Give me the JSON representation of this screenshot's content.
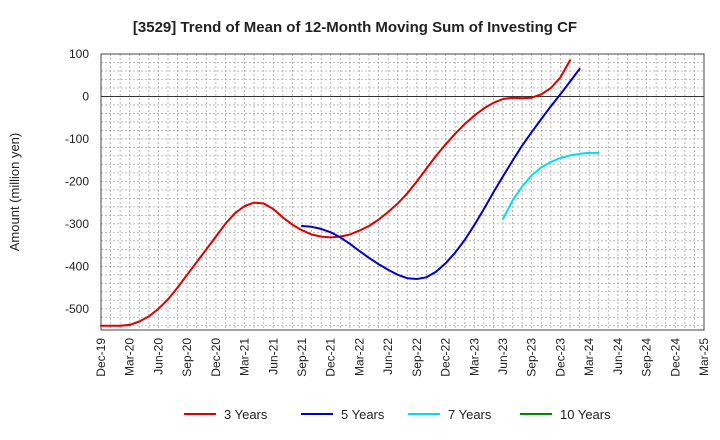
{
  "chart_data": {
    "type": "line",
    "title": "[3529]  Trend of Mean of 12-Month Moving Sum of Investing CF",
    "xlabel": "",
    "ylabel": "Amount (million yen)",
    "ylim": [
      -550,
      100
    ],
    "yticks": [
      100,
      0,
      -100,
      -200,
      -300,
      -400,
      -500
    ],
    "grid": true,
    "legend_position": "bottom",
    "x_tick_labels": [
      "Dec-19",
      "Mar-20",
      "Jun-20",
      "Sep-20",
      "Dec-20",
      "Mar-21",
      "Jun-21",
      "Sep-21",
      "Dec-21",
      "Mar-22",
      "Jun-22",
      "Sep-22",
      "Dec-22",
      "Mar-23",
      "Jun-23",
      "Sep-23",
      "Dec-23",
      "Mar-24",
      "Jun-24",
      "Sep-24",
      "Dec-24",
      "Mar-25"
    ],
    "series": [
      {
        "name": "3 Years",
        "color": "#dd0000",
        "start_index": 0,
        "values": [
          -540,
          -540,
          -540,
          -538,
          -530,
          -518,
          -500,
          -478,
          -450,
          -420,
          -390,
          -360,
          -330,
          -300,
          -275,
          -258,
          -250,
          -252,
          -265,
          -285,
          -302,
          -315,
          -325,
          -330,
          -332,
          -330,
          -325,
          -316,
          -305,
          -290,
          -272,
          -252,
          -228,
          -200,
          -170,
          -140,
          -113,
          -88,
          -65,
          -45,
          -28,
          -15,
          -6,
          -3,
          -4,
          -3,
          5,
          20,
          45,
          85
        ]
      },
      {
        "name": "5 Years",
        "color": "#0000cc",
        "start_index": 21,
        "values": [
          -305,
          -307,
          -312,
          -320,
          -332,
          -347,
          -364,
          -380,
          -395,
          -408,
          -420,
          -428,
          -430,
          -426,
          -413,
          -393,
          -368,
          -338,
          -303,
          -265,
          -226,
          -188,
          -151,
          -116,
          -84,
          -53,
          -23,
          5,
          35,
          65
        ]
      },
      {
        "name": "7 Years",
        "color": "#00ddee",
        "start_index": 42,
        "values": [
          -288,
          -245,
          -212,
          -186,
          -167,
          -154,
          -145,
          -139,
          -135,
          -133,
          -133
        ]
      },
      {
        "name": "10 Years",
        "color": "#008800",
        "start_index": 0,
        "values": []
      }
    ]
  }
}
